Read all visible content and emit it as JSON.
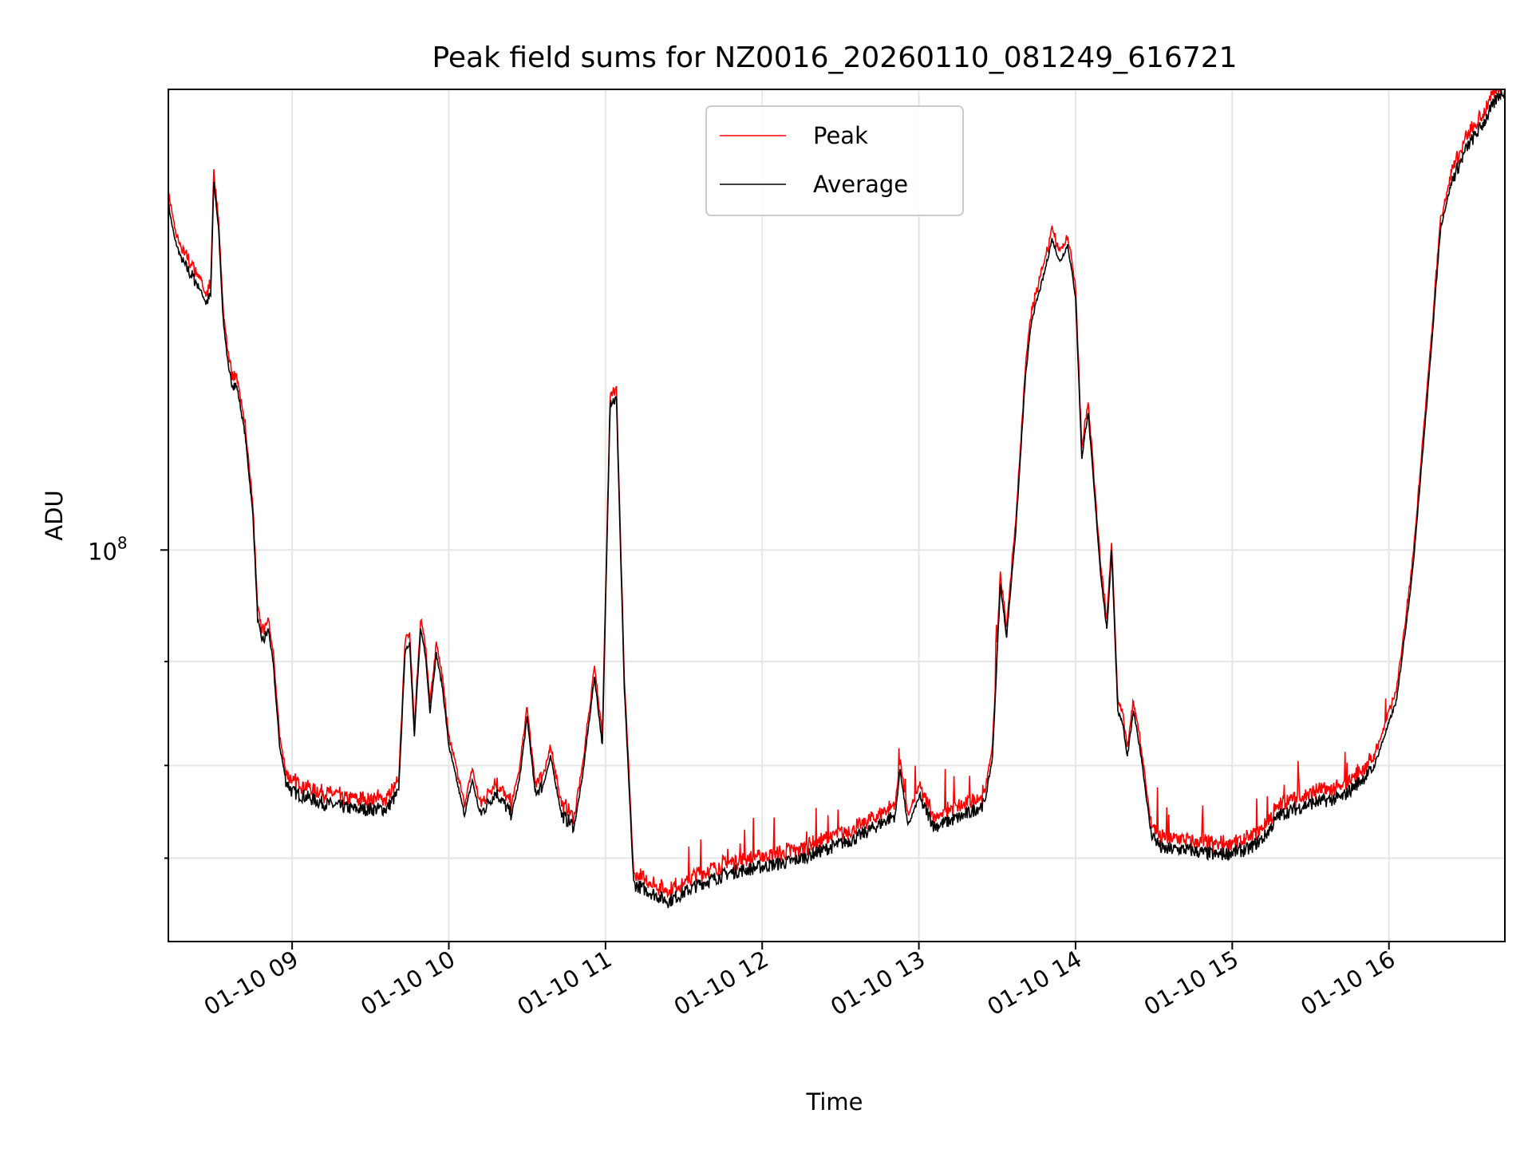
{
  "chart_data": {
    "type": "line",
    "title": "Peak field sums for NZ0016_20260110_081249_616721",
    "xlabel": "Time",
    "ylabel": "ADU",
    "yscale": "log",
    "grid": true,
    "legend_position": "upper-center",
    "xlim": [
      8.21,
      16.74
    ],
    "ylim_log10": [
      7.66,
      8.4
    ],
    "ytick_label": "10",
    "ytick_exponent": "8",
    "ytick_major": [
      8.0
    ],
    "ytick_minor": [
      7.9031,
      7.8129,
      7.7324
    ],
    "xticks": [
      {
        "value": 9,
        "label": "01-10 09"
      },
      {
        "value": 10,
        "label": "01-10 10"
      },
      {
        "value": 11,
        "label": "01-10 11"
      },
      {
        "value": 12,
        "label": "01-10 12"
      },
      {
        "value": 13,
        "label": "01-10 13"
      },
      {
        "value": 14,
        "label": "01-10 14"
      },
      {
        "value": 15,
        "label": "01-10 15"
      },
      {
        "value": 16,
        "label": "01-10 16"
      }
    ],
    "x_units": "hour of day on 01-10",
    "y_units": "log10(ADU)",
    "series": [
      {
        "name": "Peak",
        "color": "#ff0000"
      },
      {
        "name": "Average",
        "color": "#000000"
      }
    ],
    "average_points": [
      [
        8.21,
        8.3
      ],
      [
        8.25,
        8.27
      ],
      [
        8.3,
        8.25
      ],
      [
        8.35,
        8.24
      ],
      [
        8.4,
        8.23
      ],
      [
        8.45,
        8.215
      ],
      [
        8.48,
        8.22
      ],
      [
        8.5,
        8.32
      ],
      [
        8.53,
        8.28
      ],
      [
        8.56,
        8.2
      ],
      [
        8.6,
        8.15
      ],
      [
        8.65,
        8.14
      ],
      [
        8.7,
        8.1
      ],
      [
        8.75,
        8.03
      ],
      [
        8.78,
        7.94
      ],
      [
        8.81,
        7.92
      ],
      [
        8.85,
        7.93
      ],
      [
        8.88,
        7.9
      ],
      [
        8.92,
        7.83
      ],
      [
        8.96,
        7.8
      ],
      [
        9.0,
        7.79
      ],
      [
        9.2,
        7.78
      ],
      [
        9.4,
        7.775
      ],
      [
        9.6,
        7.775
      ],
      [
        9.68,
        7.79
      ],
      [
        9.72,
        7.91
      ],
      [
        9.75,
        7.92
      ],
      [
        9.78,
        7.84
      ],
      [
        9.82,
        7.93
      ],
      [
        9.85,
        7.91
      ],
      [
        9.88,
        7.86
      ],
      [
        9.92,
        7.91
      ],
      [
        9.96,
        7.88
      ],
      [
        10.0,
        7.83
      ],
      [
        10.05,
        7.8
      ],
      [
        10.1,
        7.77
      ],
      [
        10.15,
        7.8
      ],
      [
        10.2,
        7.77
      ],
      [
        10.3,
        7.79
      ],
      [
        10.4,
        7.77
      ],
      [
        10.45,
        7.8
      ],
      [
        10.5,
        7.855
      ],
      [
        10.55,
        7.79
      ],
      [
        10.6,
        7.795
      ],
      [
        10.65,
        7.82
      ],
      [
        10.72,
        7.77
      ],
      [
        10.8,
        7.76
      ],
      [
        10.85,
        7.8
      ],
      [
        10.93,
        7.89
      ],
      [
        10.98,
        7.83
      ],
      [
        11.03,
        8.13
      ],
      [
        11.07,
        8.13
      ],
      [
        11.12,
        7.88
      ],
      [
        11.18,
        7.71
      ],
      [
        11.4,
        7.695
      ],
      [
        11.6,
        7.71
      ],
      [
        11.8,
        7.72
      ],
      [
        12.0,
        7.725
      ],
      [
        12.2,
        7.73
      ],
      [
        12.4,
        7.74
      ],
      [
        12.6,
        7.75
      ],
      [
        12.85,
        7.77
      ],
      [
        12.88,
        7.81
      ],
      [
        12.93,
        7.76
      ],
      [
        13.0,
        7.785
      ],
      [
        13.1,
        7.76
      ],
      [
        13.3,
        7.77
      ],
      [
        13.42,
        7.78
      ],
      [
        13.47,
        7.82
      ],
      [
        13.52,
        7.97
      ],
      [
        13.56,
        7.925
      ],
      [
        13.62,
        8.02
      ],
      [
        13.68,
        8.15
      ],
      [
        13.72,
        8.2
      ],
      [
        13.8,
        8.24
      ],
      [
        13.85,
        8.27
      ],
      [
        13.9,
        8.25
      ],
      [
        13.95,
        8.265
      ],
      [
        14.0,
        8.22
      ],
      [
        14.04,
        8.08
      ],
      [
        14.08,
        8.12
      ],
      [
        14.12,
        8.05
      ],
      [
        14.16,
        7.98
      ],
      [
        14.2,
        7.93
      ],
      [
        14.23,
        8.0
      ],
      [
        14.27,
        7.86
      ],
      [
        14.3,
        7.85
      ],
      [
        14.33,
        7.82
      ],
      [
        14.37,
        7.86
      ],
      [
        14.42,
        7.82
      ],
      [
        14.48,
        7.755
      ],
      [
        14.55,
        7.74
      ],
      [
        14.7,
        7.74
      ],
      [
        14.9,
        7.735
      ],
      [
        15.1,
        7.74
      ],
      [
        15.2,
        7.75
      ],
      [
        15.3,
        7.77
      ],
      [
        15.5,
        7.78
      ],
      [
        15.7,
        7.785
      ],
      [
        15.9,
        7.81
      ],
      [
        16.05,
        7.87
      ],
      [
        16.15,
        7.98
      ],
      [
        16.25,
        8.14
      ],
      [
        16.33,
        8.28
      ],
      [
        16.4,
        8.32
      ],
      [
        16.5,
        8.35
      ],
      [
        16.6,
        8.37
      ],
      [
        16.7,
        8.395
      ],
      [
        16.74,
        8.4
      ]
    ],
    "peak_offset_log10": 0.006
  }
}
